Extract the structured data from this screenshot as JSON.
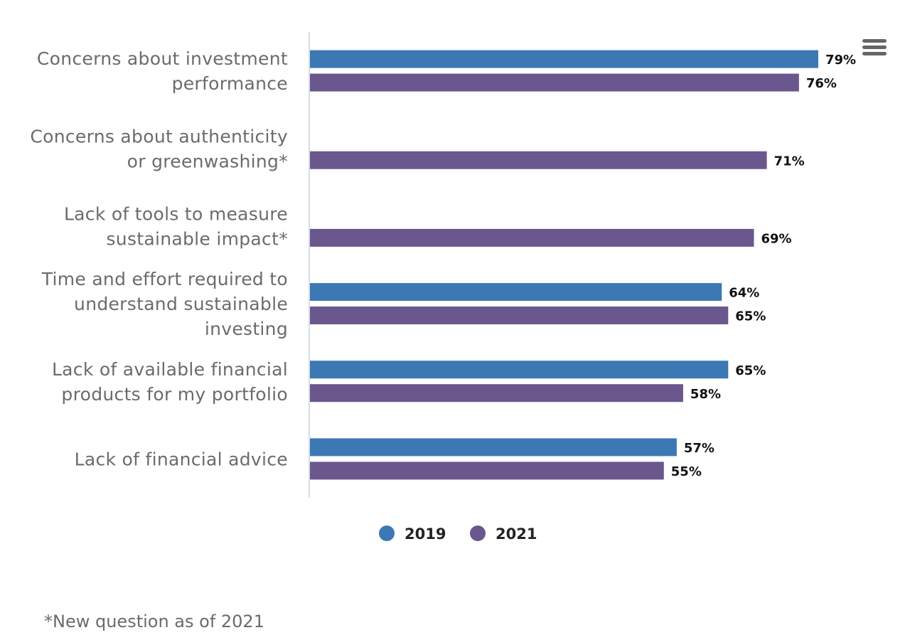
{
  "menu": {
    "icon": "hamburger-menu-icon"
  },
  "chart_data": {
    "type": "bar",
    "orientation": "horizontal",
    "categories": [
      [
        "Concerns about investment",
        "performance"
      ],
      [
        "Concerns about authenticity",
        "or greenwashing*"
      ],
      [
        "Lack of tools to measure",
        "sustainable impact*"
      ],
      [
        "Time and effort required to",
        "understand sustainable",
        "investing"
      ],
      [
        "Lack of available financial",
        "products for my portfolio"
      ],
      [
        "Lack of financial advice"
      ]
    ],
    "series": [
      {
        "name": "2019",
        "color": "#3c78b4",
        "values": [
          79,
          null,
          null,
          64,
          65,
          57
        ]
      },
      {
        "name": "2021",
        "color": "#6a578e",
        "values": [
          76,
          71,
          69,
          65,
          58,
          55
        ]
      }
    ],
    "value_suffix": "%",
    "xlim": [
      0,
      85
    ],
    "grid": false,
    "legend": "bottom-center"
  },
  "footnote": "*New question as of 2021"
}
